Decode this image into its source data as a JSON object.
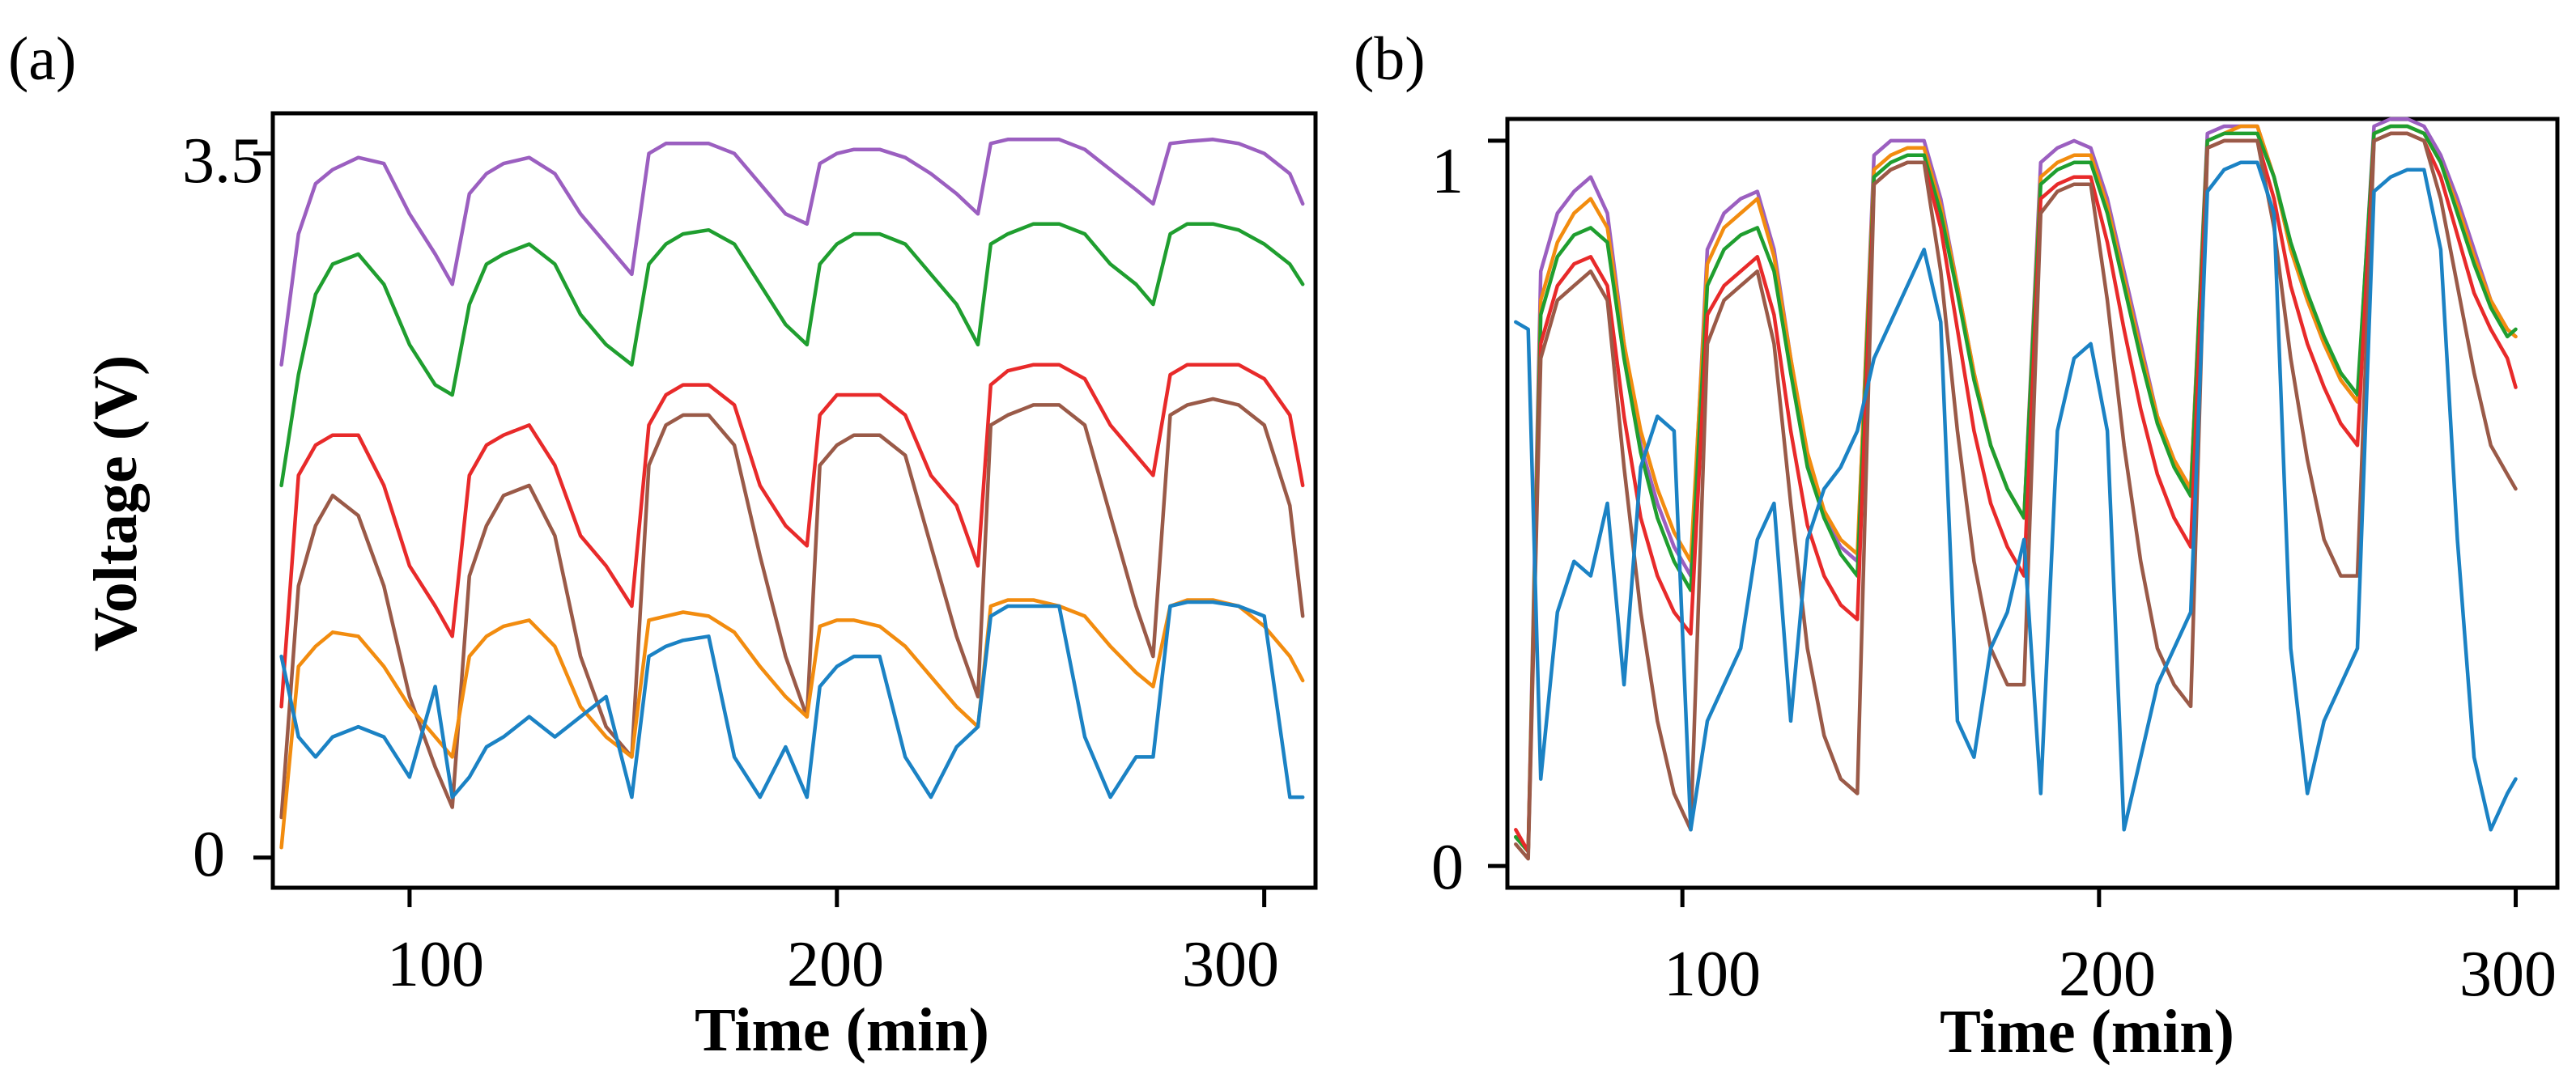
{
  "panels": {
    "a": {
      "label": "(a)",
      "xlabel": "Time (min)",
      "ylabel": "Voltage (V)",
      "xticks": [
        "100",
        "200",
        "300"
      ],
      "yticks": [
        "0",
        "3.5"
      ]
    },
    "b": {
      "label": "(b)",
      "xlabel": "Time (min)",
      "ylabel": "",
      "xticks": [
        "100",
        "200",
        "300"
      ],
      "yticks": [
        "0",
        "1"
      ]
    }
  },
  "chart_data": [
    {
      "type": "line",
      "panel": "a",
      "title": "",
      "xlabel": "Time (min)",
      "ylabel": "Voltage (V)",
      "xlim": [
        68,
        312
      ],
      "ylim": [
        -0.15,
        3.7
      ],
      "xticks": [
        100,
        200,
        300
      ],
      "yticks": [
        0,
        3.5
      ],
      "grid": false,
      "legend": "none",
      "x": [
        70,
        74,
        78,
        82,
        88,
        94,
        100,
        106,
        110,
        114,
        118,
        122,
        128,
        134,
        140,
        146,
        152,
        156,
        160,
        164,
        170,
        176,
        182,
        188,
        193,
        196,
        200,
        204,
        210,
        216,
        222,
        228,
        233,
        236,
        240,
        246,
        252,
        258,
        264,
        270,
        274,
        278,
        282,
        288,
        294,
        300,
        306,
        309
      ],
      "series": [
        {
          "color": "#9b5fc0",
          "values": [
            2.45,
            3.1,
            3.35,
            3.42,
            3.48,
            3.45,
            3.2,
            3.0,
            2.85,
            3.3,
            3.4,
            3.45,
            3.48,
            3.4,
            3.2,
            3.05,
            2.9,
            3.5,
            3.55,
            3.55,
            3.55,
            3.5,
            3.35,
            3.2,
            3.15,
            3.45,
            3.5,
            3.52,
            3.52,
            3.48,
            3.4,
            3.3,
            3.2,
            3.55,
            3.57,
            3.57,
            3.57,
            3.52,
            3.42,
            3.32,
            3.25,
            3.55,
            3.56,
            3.57,
            3.55,
            3.5,
            3.4,
            3.25
          ]
        },
        {
          "color": "#1f9e2f",
          "values": [
            1.85,
            2.4,
            2.8,
            2.95,
            3.0,
            2.85,
            2.55,
            2.35,
            2.3,
            2.75,
            2.95,
            3.0,
            3.05,
            2.95,
            2.7,
            2.55,
            2.45,
            2.95,
            3.05,
            3.1,
            3.12,
            3.05,
            2.85,
            2.65,
            2.55,
            2.95,
            3.05,
            3.1,
            3.1,
            3.05,
            2.9,
            2.75,
            2.55,
            3.05,
            3.1,
            3.15,
            3.15,
            3.1,
            2.95,
            2.85,
            2.75,
            3.1,
            3.15,
            3.15,
            3.12,
            3.05,
            2.95,
            2.85
          ]
        },
        {
          "color": "#e82a2a",
          "values": [
            0.75,
            1.9,
            2.05,
            2.1,
            2.1,
            1.85,
            1.45,
            1.25,
            1.1,
            1.9,
            2.05,
            2.1,
            2.15,
            1.95,
            1.6,
            1.45,
            1.25,
            2.15,
            2.3,
            2.35,
            2.35,
            2.25,
            1.85,
            1.65,
            1.55,
            2.2,
            2.3,
            2.3,
            2.3,
            2.2,
            1.9,
            1.75,
            1.45,
            2.35,
            2.42,
            2.45,
            2.45,
            2.38,
            2.15,
            2.0,
            1.9,
            2.4,
            2.45,
            2.45,
            2.45,
            2.38,
            2.2,
            1.85
          ]
        },
        {
          "color": "#9a5a48",
          "values": [
            0.2,
            1.35,
            1.65,
            1.8,
            1.7,
            1.35,
            0.8,
            0.45,
            0.25,
            1.4,
            1.65,
            1.8,
            1.85,
            1.6,
            1.0,
            0.65,
            0.5,
            1.95,
            2.15,
            2.2,
            2.2,
            2.05,
            1.5,
            1.0,
            0.7,
            1.95,
            2.05,
            2.1,
            2.1,
            2.0,
            1.55,
            1.1,
            0.8,
            2.15,
            2.2,
            2.25,
            2.25,
            2.15,
            1.7,
            1.25,
            1.0,
            2.2,
            2.25,
            2.28,
            2.25,
            2.15,
            1.75,
            1.2
          ]
        },
        {
          "color": "#f28c0f",
          "values": [
            0.05,
            0.95,
            1.05,
            1.12,
            1.1,
            0.95,
            0.75,
            0.6,
            0.5,
            1.0,
            1.1,
            1.15,
            1.18,
            1.05,
            0.75,
            0.6,
            0.5,
            1.18,
            1.2,
            1.22,
            1.2,
            1.12,
            0.95,
            0.8,
            0.7,
            1.15,
            1.18,
            1.18,
            1.15,
            1.05,
            0.9,
            0.75,
            0.65,
            1.25,
            1.28,
            1.28,
            1.25,
            1.2,
            1.05,
            0.92,
            0.85,
            1.25,
            1.28,
            1.28,
            1.25,
            1.15,
            1.0,
            0.88
          ]
        },
        {
          "color": "#1b82c4",
          "values": [
            1.0,
            0.6,
            0.5,
            0.6,
            0.65,
            0.6,
            0.4,
            0.85,
            0.3,
            0.4,
            0.55,
            0.6,
            0.7,
            0.6,
            0.7,
            0.8,
            0.3,
            1.0,
            1.05,
            1.08,
            1.1,
            0.5,
            0.3,
            0.55,
            0.3,
            0.85,
            0.95,
            1.0,
            1.0,
            0.5,
            0.3,
            0.55,
            0.65,
            1.2,
            1.25,
            1.25,
            1.25,
            0.6,
            0.3,
            0.5,
            0.5,
            1.25,
            1.27,
            1.27,
            1.25,
            1.2,
            0.3,
            0.3
          ]
        }
      ]
    },
    {
      "type": "line",
      "panel": "b",
      "title": "",
      "xlabel": "Time (min)",
      "ylabel": "",
      "xlim": [
        58,
        310
      ],
      "ylim": [
        -0.03,
        1.03
      ],
      "xticks": [
        100,
        200,
        300
      ],
      "yticks": [
        0,
        1
      ],
      "grid": false,
      "legend": "none",
      "x": [
        60,
        63,
        66,
        70,
        74,
        78,
        82,
        86,
        90,
        94,
        98,
        102,
        106,
        110,
        114,
        118,
        122,
        126,
        130,
        134,
        138,
        142,
        146,
        150,
        154,
        158,
        162,
        166,
        170,
        174,
        178,
        182,
        186,
        190,
        194,
        198,
        202,
        206,
        210,
        214,
        218,
        222,
        226,
        230,
        234,
        238,
        242,
        246,
        250,
        254,
        258,
        262,
        266,
        270,
        274,
        278,
        282,
        286,
        290,
        294,
        298,
        300
      ],
      "series": [
        {
          "color": "#9b5fc0",
          "values": [
            0.04,
            0.02,
            0.82,
            0.9,
            0.93,
            0.95,
            0.9,
            0.72,
            0.58,
            0.5,
            0.44,
            0.4,
            0.85,
            0.9,
            0.92,
            0.93,
            0.85,
            0.7,
            0.56,
            0.48,
            0.44,
            0.42,
            0.98,
            1.0,
            1.0,
            1.0,
            0.92,
            0.8,
            0.68,
            0.58,
            0.52,
            0.48,
            0.97,
            0.99,
            1.0,
            0.99,
            0.92,
            0.82,
            0.72,
            0.62,
            0.56,
            0.52,
            1.01,
            1.02,
            1.02,
            1.02,
            0.95,
            0.85,
            0.78,
            0.72,
            0.67,
            0.64,
            1.02,
            1.03,
            1.03,
            1.02,
            0.98,
            0.92,
            0.85,
            0.78,
            0.74,
            0.73
          ]
        },
        {
          "color": "#f28c0f",
          "values": [
            0.04,
            0.02,
            0.78,
            0.86,
            0.9,
            0.92,
            0.88,
            0.72,
            0.6,
            0.52,
            0.46,
            0.42,
            0.83,
            0.88,
            0.9,
            0.92,
            0.84,
            0.7,
            0.57,
            0.49,
            0.45,
            0.43,
            0.96,
            0.98,
            0.99,
            0.99,
            0.91,
            0.8,
            0.68,
            0.58,
            0.52,
            0.48,
            0.95,
            0.97,
            0.98,
            0.98,
            0.91,
            0.81,
            0.71,
            0.62,
            0.56,
            0.52,
            1.0,
            1.01,
            1.02,
            1.02,
            0.95,
            0.85,
            0.78,
            0.72,
            0.67,
            0.64,
            1.01,
            1.02,
            1.02,
            1.01,
            0.97,
            0.91,
            0.84,
            0.78,
            0.74,
            0.73
          ]
        },
        {
          "color": "#1f9e2f",
          "values": [
            0.04,
            0.02,
            0.76,
            0.84,
            0.87,
            0.88,
            0.86,
            0.7,
            0.57,
            0.48,
            0.42,
            0.38,
            0.8,
            0.85,
            0.87,
            0.88,
            0.82,
            0.68,
            0.55,
            0.48,
            0.43,
            0.4,
            0.95,
            0.97,
            0.98,
            0.98,
            0.9,
            0.79,
            0.67,
            0.58,
            0.52,
            0.48,
            0.94,
            0.96,
            0.97,
            0.97,
            0.9,
            0.8,
            0.7,
            0.61,
            0.55,
            0.51,
            1.0,
            1.01,
            1.01,
            1.01,
            0.95,
            0.86,
            0.79,
            0.73,
            0.68,
            0.65,
            1.01,
            1.02,
            1.02,
            1.01,
            0.97,
            0.9,
            0.83,
            0.77,
            0.73,
            0.74
          ]
        },
        {
          "color": "#e82a2a",
          "values": [
            0.05,
            0.02,
            0.72,
            0.8,
            0.83,
            0.84,
            0.8,
            0.62,
            0.48,
            0.4,
            0.35,
            0.32,
            0.76,
            0.8,
            0.82,
            0.84,
            0.76,
            0.6,
            0.47,
            0.4,
            0.36,
            0.34,
            0.94,
            0.96,
            0.97,
            0.97,
            0.88,
            0.74,
            0.6,
            0.5,
            0.44,
            0.4,
            0.92,
            0.94,
            0.95,
            0.95,
            0.86,
            0.74,
            0.63,
            0.54,
            0.48,
            0.44,
            0.99,
            1.0,
            1.0,
            1.0,
            0.92,
            0.8,
            0.72,
            0.66,
            0.61,
            0.58,
            1.0,
            1.01,
            1.01,
            1.0,
            0.95,
            0.87,
            0.79,
            0.74,
            0.7,
            0.66
          ]
        },
        {
          "color": "#9a5a48",
          "values": [
            0.03,
            0.01,
            0.7,
            0.78,
            0.8,
            0.82,
            0.78,
            0.55,
            0.35,
            0.2,
            0.1,
            0.05,
            0.72,
            0.78,
            0.8,
            0.82,
            0.72,
            0.5,
            0.3,
            0.18,
            0.12,
            0.1,
            0.94,
            0.96,
            0.97,
            0.97,
            0.82,
            0.6,
            0.42,
            0.3,
            0.25,
            0.25,
            0.9,
            0.93,
            0.94,
            0.94,
            0.78,
            0.58,
            0.42,
            0.3,
            0.25,
            0.22,
            0.99,
            1.0,
            1.0,
            1.0,
            0.88,
            0.7,
            0.56,
            0.45,
            0.4,
            0.4,
            1.0,
            1.01,
            1.01,
            1.0,
            0.92,
            0.8,
            0.68,
            0.58,
            0.54,
            0.52
          ]
        },
        {
          "color": "#1b82c4",
          "values": [
            0.75,
            0.74,
            0.12,
            0.35,
            0.42,
            0.4,
            0.5,
            0.25,
            0.55,
            0.62,
            0.6,
            0.05,
            0.2,
            0.25,
            0.3,
            0.45,
            0.5,
            0.2,
            0.45,
            0.52,
            0.55,
            0.6,
            0.7,
            0.75,
            0.8,
            0.85,
            0.75,
            0.2,
            0.15,
            0.3,
            0.35,
            0.45,
            0.1,
            0.6,
            0.7,
            0.72,
            0.6,
            0.05,
            0.15,
            0.25,
            0.3,
            0.35,
            0.93,
            0.96,
            0.97,
            0.97,
            0.9,
            0.3,
            0.1,
            0.2,
            0.25,
            0.3,
            0.93,
            0.95,
            0.96,
            0.96,
            0.85,
            0.45,
            0.15,
            0.05,
            0.1,
            0.12
          ]
        }
      ]
    }
  ]
}
